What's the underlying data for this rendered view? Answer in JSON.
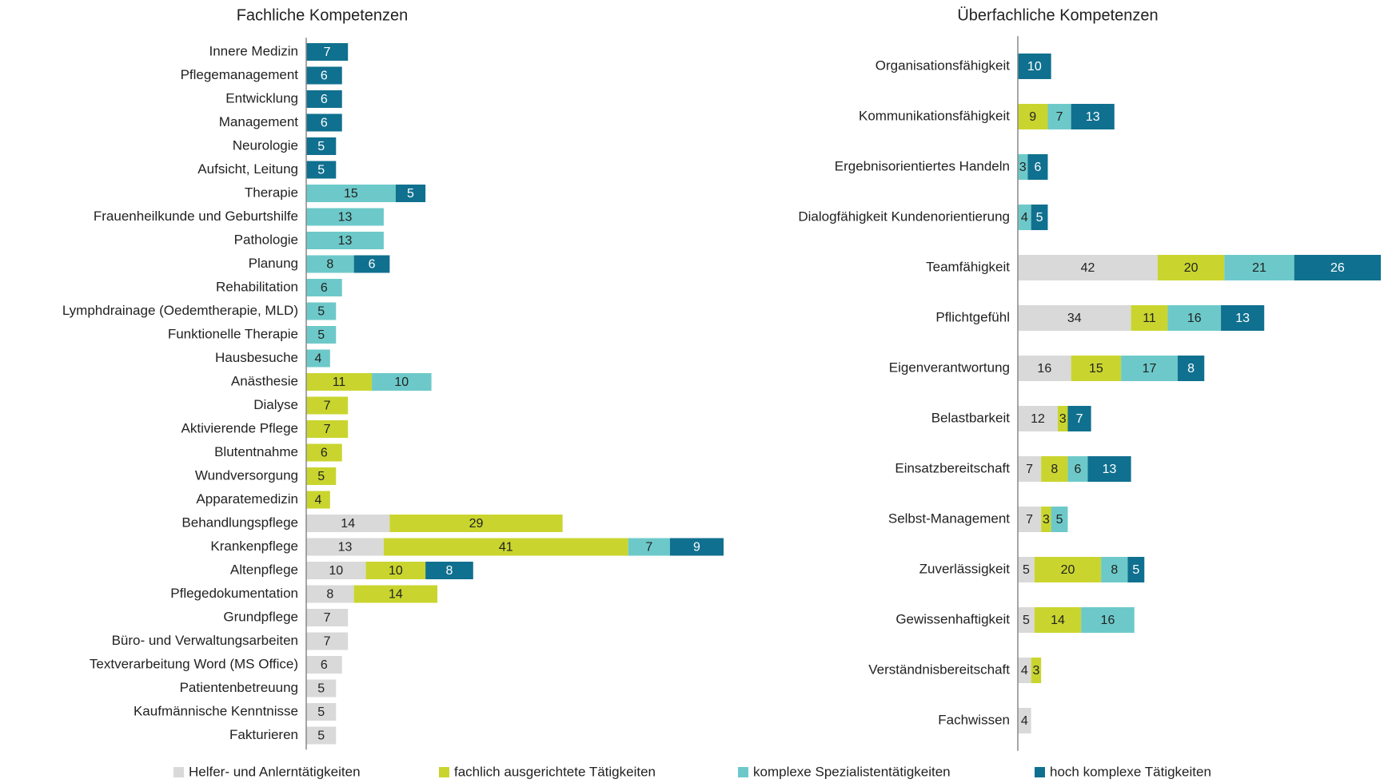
{
  "chart_data": [
    {
      "type": "bar",
      "orientation": "horizontal",
      "stacked": true,
      "title": "Fachliche Kompetenzen",
      "categories": [
        "Innere Medizin",
        "Pflegemanagement",
        "Entwicklung",
        "Management",
        "Neurologie",
        "Aufsicht, Leitung",
        "Therapie",
        "Frauenheilkunde und Geburtshilfe",
        "Pathologie",
        "Planung",
        "Rehabilitation",
        "Lymphdrainage (Oedemtherapie, MLD)",
        "Funktionelle Therapie",
        "Hausbesuche",
        "Anästhesie",
        "Dialyse",
        "Aktivierende Pflege",
        "Blutentnahme",
        "Wundversorgung",
        "Apparatemedizin",
        "Behandlungspflege",
        "Krankenpflege",
        "Altenpflege",
        "Pflegedokumentation",
        "Grundpflege",
        "Büro- und Verwaltungsarbeiten",
        "Textverarbeitung Word (MS Office)",
        "Patientenbetreuung",
        "Kaufmännische Kenntnisse",
        "Fakturieren"
      ],
      "series": [
        {
          "name": "Helfer- und Anlerntätigkeiten",
          "color": "#d9d9d9",
          "values": [
            null,
            null,
            null,
            null,
            null,
            null,
            null,
            null,
            null,
            null,
            null,
            null,
            null,
            null,
            null,
            null,
            null,
            null,
            null,
            null,
            14,
            13,
            10,
            8,
            7,
            7,
            6,
            5,
            5,
            5
          ]
        },
        {
          "name": "fachlich ausgerichtete Tätigkeiten",
          "color": "#c9d52e",
          "values": [
            null,
            null,
            null,
            null,
            null,
            null,
            null,
            null,
            null,
            null,
            null,
            null,
            null,
            null,
            11,
            7,
            7,
            6,
            5,
            4,
            29,
            41,
            10,
            14,
            null,
            null,
            null,
            null,
            null,
            null
          ]
        },
        {
          "name": "komplexe Spezialistentätigkeiten",
          "color": "#6dc9c9",
          "values": [
            null,
            null,
            null,
            null,
            null,
            null,
            15,
            13,
            13,
            8,
            6,
            5,
            5,
            4,
            10,
            null,
            null,
            null,
            null,
            null,
            null,
            7,
            null,
            null,
            null,
            null,
            null,
            null,
            null,
            null
          ]
        },
        {
          "name": "hoch komplexe Tätigkeiten",
          "color": "#10708f",
          "values": [
            7,
            6,
            6,
            6,
            5,
            5,
            5,
            null,
            null,
            6,
            null,
            null,
            null,
            null,
            null,
            null,
            null,
            null,
            null,
            null,
            null,
            9,
            8,
            null,
            null,
            null,
            null,
            null,
            null,
            null
          ]
        }
      ]
    },
    {
      "type": "bar",
      "orientation": "horizontal",
      "stacked": true,
      "title": "Überfachliche Kompetenzen",
      "categories": [
        "Organisationsfähigkeit",
        "Kommunikationsfähigkeit",
        "Ergebnisorientiertes Handeln",
        "Dialogfähigkeit Kundenorientierung",
        "Teamfähigkeit",
        "Pflichtgefühl",
        "Eigenverantwortung",
        "Belastbarkeit",
        "Einsatzbereitschaft",
        "Selbst-Management",
        "Zuverlässigkeit",
        "Gewissenhaftigkeit",
        "Verständnisbereitschaft",
        "Fachwissen"
      ],
      "series": [
        {
          "color": "#d9d9d9",
          "values": [
            null,
            null,
            null,
            null,
            42,
            34,
            16,
            12,
            7,
            7,
            5,
            5,
            4,
            4
          ]
        },
        {
          "color": "#c9d52e",
          "values": [
            null,
            9,
            null,
            null,
            20,
            11,
            15,
            3,
            8,
            3,
            20,
            14,
            3,
            null
          ]
        },
        {
          "color": "#6dc9c9",
          "values": [
            null,
            7,
            3,
            4,
            21,
            16,
            17,
            null,
            6,
            5,
            8,
            16,
            null,
            null
          ]
        },
        {
          "color": "#10708f",
          "values": [
            10,
            13,
            6,
            5,
            26,
            13,
            8,
            7,
            13,
            null,
            5,
            null,
            null,
            null
          ]
        }
      ]
    }
  ]
}
